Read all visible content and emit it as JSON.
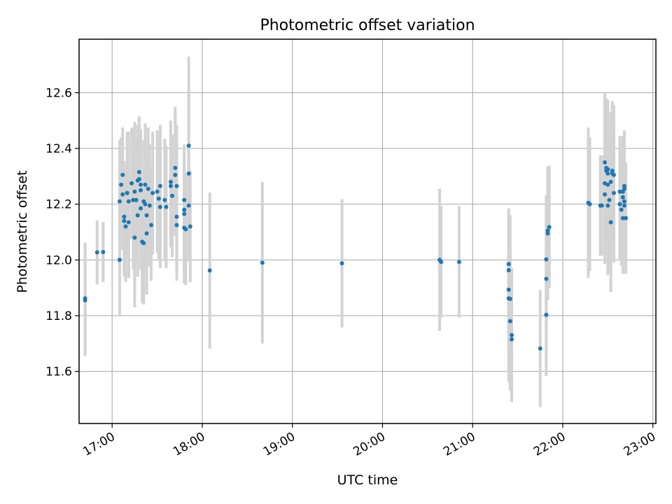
{
  "chart_data": {
    "type": "scatter",
    "title": "Photometric offset variation",
    "xlabel": "UTC time",
    "ylabel": "Photometric offset",
    "x_ticks": [
      "17:00",
      "18:00",
      "19:00",
      "20:00",
      "21:00",
      "22:00",
      "23:00"
    ],
    "y_ticks": [
      "11.6",
      "11.8",
      "12.0",
      "12.2",
      "12.4",
      "12.6"
    ],
    "xlim": [
      "16:38",
      "23:02"
    ],
    "ylim": [
      11.413,
      12.792
    ],
    "grid": true,
    "marker_color": "#1f77b4",
    "errorbar_color": "#d3d3d3",
    "points": [
      {
        "x": "16:42",
        "y": 11.862,
        "err": 0.2
      },
      {
        "x": "16:42",
        "y": 11.855,
        "err": 0.2
      },
      {
        "x": "16:50",
        "y": 12.027,
        "err": 0.115
      },
      {
        "x": "16:54",
        "y": 12.028,
        "err": 0.108
      },
      {
        "x": "17:05",
        "y": 12.0,
        "err": 0.2
      },
      {
        "x": "17:05",
        "y": 12.21,
        "err": 0.22
      },
      {
        "x": "17:06",
        "y": 12.27,
        "err": 0.17
      },
      {
        "x": "17:07",
        "y": 12.305,
        "err": 0.17
      },
      {
        "x": "17:07",
        "y": 12.235,
        "err": 0.2
      },
      {
        "x": "17:08",
        "y": 12.155,
        "err": 0.2
      },
      {
        "x": "17:08",
        "y": 12.14,
        "err": 0.2
      },
      {
        "x": "17:09",
        "y": 12.12,
        "err": 0.2
      },
      {
        "x": "17:10",
        "y": 12.24,
        "err": 0.22
      },
      {
        "x": "17:11",
        "y": 12.135,
        "err": 0.2
      },
      {
        "x": "17:11",
        "y": 12.21,
        "err": 0.25
      },
      {
        "x": "17:13",
        "y": 12.275,
        "err": 0.2
      },
      {
        "x": "17:14",
        "y": 12.215,
        "err": 0.25
      },
      {
        "x": "17:15",
        "y": 12.245,
        "err": 0.25
      },
      {
        "x": "17:15",
        "y": 12.08,
        "err": 0.25
      },
      {
        "x": "17:16",
        "y": 12.215,
        "err": 0.22
      },
      {
        "x": "17:17",
        "y": 12.285,
        "err": 0.2
      },
      {
        "x": "17:17",
        "y": 12.16,
        "err": 0.22
      },
      {
        "x": "17:18",
        "y": 12.29,
        "err": 0.22
      },
      {
        "x": "17:18",
        "y": 12.315,
        "err": 0.2
      },
      {
        "x": "17:19",
        "y": 12.27,
        "err": 0.2
      },
      {
        "x": "17:19",
        "y": 12.25,
        "err": 0.2
      },
      {
        "x": "17:19",
        "y": 12.185,
        "err": 0.22
      },
      {
        "x": "17:20",
        "y": 12.065,
        "err": 0.22
      },
      {
        "x": "17:21",
        "y": 12.21,
        "err": 0.22
      },
      {
        "x": "17:21",
        "y": 12.06,
        "err": 0.22
      },
      {
        "x": "17:22",
        "y": 12.2,
        "err": 0.22
      },
      {
        "x": "17:22",
        "y": 12.27,
        "err": 0.22
      },
      {
        "x": "17:23",
        "y": 12.16,
        "err": 0.22
      },
      {
        "x": "17:23",
        "y": 12.095,
        "err": 0.22
      },
      {
        "x": "17:24",
        "y": 12.255,
        "err": 0.22
      },
      {
        "x": "17:25",
        "y": 12.195,
        "err": 0.22
      },
      {
        "x": "17:26",
        "y": 12.125,
        "err": 0.2
      },
      {
        "x": "17:27",
        "y": 12.24,
        "err": 0.22
      },
      {
        "x": "17:30",
        "y": 12.245,
        "err": 0.22
      },
      {
        "x": "17:31",
        "y": 12.22,
        "err": 0.22
      },
      {
        "x": "17:32",
        "y": 12.265,
        "err": 0.22
      },
      {
        "x": "17:32",
        "y": 12.19,
        "err": 0.22
      },
      {
        "x": "17:35",
        "y": 12.215,
        "err": 0.22
      },
      {
        "x": "17:36",
        "y": 12.19,
        "err": 0.22
      },
      {
        "x": "17:39",
        "y": 12.28,
        "err": 0.22
      },
      {
        "x": "17:39",
        "y": 12.265,
        "err": 0.22
      },
      {
        "x": "17:40",
        "y": 12.23,
        "err": 0.22
      },
      {
        "x": "17:42",
        "y": 12.33,
        "err": 0.22
      },
      {
        "x": "17:42",
        "y": 12.305,
        "err": 0.22
      },
      {
        "x": "17:43",
        "y": 12.155,
        "err": 0.2
      },
      {
        "x": "17:43",
        "y": 12.125,
        "err": 0.2
      },
      {
        "x": "17:43",
        "y": 12.265,
        "err": 0.22
      },
      {
        "x": "17:48",
        "y": 12.215,
        "err": 0.2
      },
      {
        "x": "17:48",
        "y": 12.18,
        "err": 0.2
      },
      {
        "x": "17:48",
        "y": 12.165,
        "err": 0.2
      },
      {
        "x": "17:48",
        "y": 12.115,
        "err": 0.2
      },
      {
        "x": "17:49",
        "y": 12.11,
        "err": 0.2
      },
      {
        "x": "17:51",
        "y": 12.41,
        "err": 0.32
      },
      {
        "x": "17:51",
        "y": 12.31,
        "err": 0.3
      },
      {
        "x": "17:51",
        "y": 12.195,
        "err": 0.2
      },
      {
        "x": "17:52",
        "y": 12.12,
        "err": 0.2
      },
      {
        "x": "18:05",
        "y": 11.962,
        "err": 0.28
      },
      {
        "x": "18:40",
        "y": 11.99,
        "err": 0.29
      },
      {
        "x": "19:33",
        "y": 11.988,
        "err": 0.23
      },
      {
        "x": "20:38",
        "y": 12.0,
        "err": 0.255
      },
      {
        "x": "20:39",
        "y": 11.993,
        "err": 0.2
      },
      {
        "x": "20:51",
        "y": 11.993,
        "err": 0.2
      },
      {
        "x": "21:24",
        "y": 11.985,
        "err": 0.2
      },
      {
        "x": "21:24",
        "y": 11.963,
        "err": 0.2
      },
      {
        "x": "21:24",
        "y": 11.893,
        "err": 0.2
      },
      {
        "x": "21:24",
        "y": 11.862,
        "err": 0.3
      },
      {
        "x": "21:25",
        "y": 11.86,
        "err": 0.3
      },
      {
        "x": "21:25",
        "y": 11.78,
        "err": 0.25
      },
      {
        "x": "21:26",
        "y": 11.73,
        "err": 0.24
      },
      {
        "x": "21:26",
        "y": 11.715,
        "err": 0.22
      },
      {
        "x": "21:45",
        "y": 11.682,
        "err": 0.21
      },
      {
        "x": "21:49",
        "y": 11.932,
        "err": 0.27
      },
      {
        "x": "21:49",
        "y": 11.803,
        "err": 0.22
      },
      {
        "x": "21:49",
        "y": 12.002,
        "err": 0.23
      },
      {
        "x": "21:50",
        "y": 12.095,
        "err": 0.24
      },
      {
        "x": "21:50",
        "y": 12.105,
        "err": 0.23
      },
      {
        "x": "21:51",
        "y": 12.118,
        "err": 0.22
      },
      {
        "x": "22:17",
        "y": 12.205,
        "err": 0.27
      },
      {
        "x": "22:18",
        "y": 12.2,
        "err": 0.24
      },
      {
        "x": "22:25",
        "y": 12.195,
        "err": 0.18
      },
      {
        "x": "22:26",
        "y": 12.195,
        "err": 0.18
      },
      {
        "x": "22:28",
        "y": 12.235,
        "err": 0.25
      },
      {
        "x": "22:28",
        "y": 12.275,
        "err": 0.25
      },
      {
        "x": "22:28",
        "y": 12.35,
        "err": 0.25
      },
      {
        "x": "22:29",
        "y": 12.33,
        "err": 0.25
      },
      {
        "x": "22:29",
        "y": 12.32,
        "err": 0.25
      },
      {
        "x": "22:30",
        "y": 12.325,
        "err": 0.25
      },
      {
        "x": "22:30",
        "y": 12.31,
        "err": 0.25
      },
      {
        "x": "22:30",
        "y": 12.27,
        "err": 0.25
      },
      {
        "x": "22:30",
        "y": 12.195,
        "err": 0.25
      },
      {
        "x": "22:31",
        "y": 12.215,
        "err": 0.25
      },
      {
        "x": "22:32",
        "y": 12.135,
        "err": 0.25
      },
      {
        "x": "22:32",
        "y": 12.28,
        "err": 0.25
      },
      {
        "x": "22:33",
        "y": 12.32,
        "err": 0.25
      },
      {
        "x": "22:33",
        "y": 12.31,
        "err": 0.25
      },
      {
        "x": "22:34",
        "y": 12.305,
        "err": 0.25
      },
      {
        "x": "22:34",
        "y": 12.24,
        "err": 0.25
      },
      {
        "x": "22:38",
        "y": 12.245,
        "err": 0.2
      },
      {
        "x": "22:38",
        "y": 12.2,
        "err": 0.2
      },
      {
        "x": "22:39",
        "y": 12.18,
        "err": 0.2
      },
      {
        "x": "22:40",
        "y": 12.245,
        "err": 0.2
      },
      {
        "x": "22:40",
        "y": 12.225,
        "err": 0.2
      },
      {
        "x": "22:40",
        "y": 12.15,
        "err": 0.2
      },
      {
        "x": "22:41",
        "y": 12.265,
        "err": 0.2
      },
      {
        "x": "22:41",
        "y": 12.255,
        "err": 0.2
      },
      {
        "x": "22:41",
        "y": 12.21,
        "err": 0.2
      },
      {
        "x": "22:41",
        "y": 12.195,
        "err": 0.2
      },
      {
        "x": "22:42",
        "y": 12.15,
        "err": 0.2
      }
    ]
  }
}
